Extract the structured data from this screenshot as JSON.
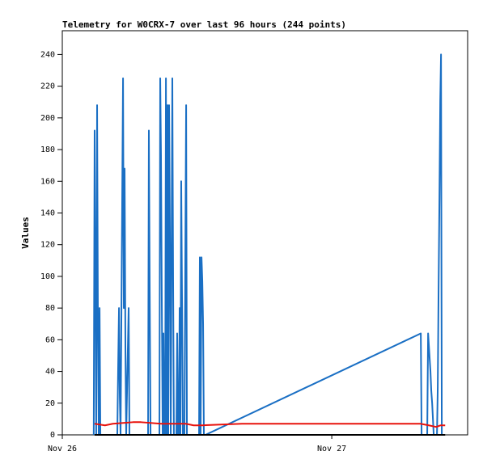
{
  "chart_data": {
    "type": "line",
    "title": "Telemetry for W0CRX-7 over last 96 hours (244 points)",
    "y_label": "Values",
    "xlim": [
      0,
      36.1
    ],
    "xticks": [
      {
        "value": 0,
        "label": "Nov 26"
      },
      {
        "value": 24,
        "label": "Nov 27"
      }
    ],
    "ylim": [
      0,
      255
    ],
    "yticks": [
      0,
      20,
      40,
      60,
      80,
      100,
      120,
      140,
      160,
      180,
      200,
      220,
      240
    ],
    "series": [
      {
        "color": "#1a6fc4",
        "x": [
          2.8,
          2.88,
          2.95,
          3.02,
          3.1,
          3.17,
          3.24,
          3.32,
          3.39,
          4.9,
          4.97,
          5.05,
          5.12,
          5.19,
          5.41,
          5.48,
          5.55,
          5.62,
          5.69,
          5.91,
          5.98,
          7.64,
          7.71,
          7.78,
          7.86,
          8.65,
          8.72,
          8.79,
          8.86,
          8.94,
          9.01,
          9.08,
          9.16,
          9.23,
          9.3,
          9.37,
          9.44,
          9.51,
          9.59,
          9.66,
          9.8,
          9.87,
          9.94,
          10.16,
          10.23,
          10.3,
          10.38,
          10.45,
          10.52,
          10.59,
          10.67,
          10.74,
          10.88,
          10.95,
          11.03,
          11.1,
          12.18,
          12.25,
          12.32,
          12.4,
          12.47,
          12.54,
          12.61,
          12.76,
          31.93,
          32.0,
          32.5,
          32.58,
          32.65,
          32.72,
          32.79,
          32.86,
          32.94,
          33.08,
          33.37,
          33.44,
          33.51,
          33.59,
          33.66,
          33.73,
          33.8
        ],
        "values": [
          0,
          192,
          97,
          0,
          208,
          80,
          0,
          80,
          0,
          0,
          40,
          80,
          24,
          0,
          225,
          80,
          168,
          56,
          0,
          80,
          0,
          0,
          192,
          97,
          0,
          0,
          225,
          176,
          88,
          0,
          64,
          0,
          0,
          225,
          0,
          208,
          0,
          208,
          120,
          0,
          225,
          97,
          0,
          0,
          64,
          0,
          0,
          80,
          0,
          160,
          80,
          0,
          0,
          104,
          208,
          0,
          0,
          112,
          0,
          112,
          97,
          70,
          0,
          0,
          64,
          0,
          0,
          64,
          56,
          48,
          40,
          28,
          20,
          0,
          0,
          30,
          90,
          150,
          210,
          240,
          0
        ]
      },
      {
        "color": "#e8120c",
        "x": [
          2.88,
          3.8,
          4.5,
          6.3,
          7.0,
          8.8,
          11.0,
          11.7,
          12.4,
          16.0,
          31.9,
          32.65,
          33.3,
          33.7,
          34.1
        ],
        "values": [
          7,
          6,
          7,
          8,
          8,
          7,
          7,
          6,
          6,
          7,
          7,
          6,
          5,
          6,
          6
        ]
      },
      {
        "color": "#000000",
        "x": [
          2.88,
          34.1
        ],
        "values": [
          0,
          0
        ]
      }
    ]
  }
}
